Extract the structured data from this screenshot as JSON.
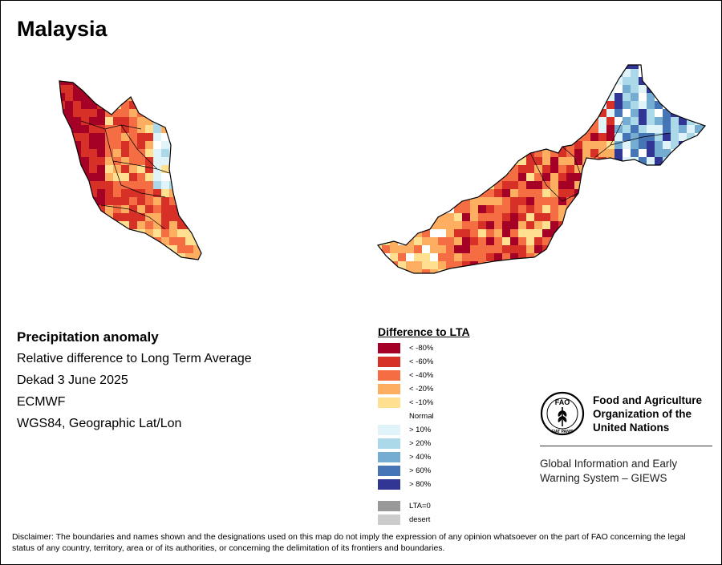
{
  "title": "Malaysia",
  "info": {
    "heading": "Precipitation anomaly",
    "line1": "Relative difference to Long Term Average",
    "line2": "Dekad 3 June 2025",
    "line3": "ECMWF",
    "line4": "WGS84, Geographic Lat/Lon"
  },
  "legend": {
    "title": "Difference to LTA",
    "items": [
      {
        "label": "< -80%",
        "color": "#a50026"
      },
      {
        "label": "< -60%",
        "color": "#d73027"
      },
      {
        "label": "< -40%",
        "color": "#f46d43"
      },
      {
        "label": "< -20%",
        "color": "#fdae61"
      },
      {
        "label": "< -10%",
        "color": "#fee090"
      },
      {
        "label": "Normal",
        "color": ""
      },
      {
        "label": "> 10%",
        "color": "#e0f3f8"
      },
      {
        "label": "> 20%",
        "color": "#abd9e9"
      },
      {
        "label": "> 40%",
        "color": "#74add1"
      },
      {
        "label": "> 60%",
        "color": "#4575b4"
      },
      {
        "label": "> 80%",
        "color": "#313695"
      }
    ],
    "extra": [
      {
        "label": "LTA=0",
        "color": "#999999"
      },
      {
        "label": "desert",
        "color": "#cccccc"
      }
    ]
  },
  "org": {
    "name_line1": "Food and Agriculture",
    "name_line2": "Organization of the",
    "name_line3": "United Nations",
    "logo_text": "FAO",
    "logo_ring": "FIAT PANIS",
    "system_line1": "Global Information and Early",
    "system_line2": "Warning System – GIEWS"
  },
  "disclaimer": "Disclaimer: The boundaries and names shown and the designations used on this map do not imply the expression of any opinion whatsoever on the part of FAO concerning the legal status of any country, territory, area or of its authorities, or concerning the delimitation of its frontiers and boundaries."
}
